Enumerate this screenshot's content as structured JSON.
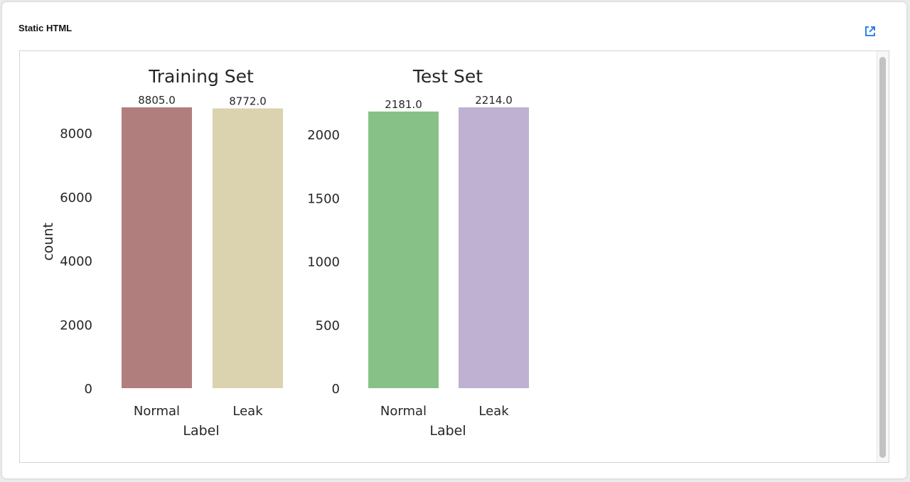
{
  "card": {
    "title": "Static HTML",
    "open_icon": "open-in-new-icon",
    "accent_color": "#1a73e8"
  },
  "chart_data": [
    {
      "type": "bar",
      "title": "Training Set",
      "xlabel": "Label",
      "ylabel": "count",
      "categories": [
        "Normal",
        "Leak"
      ],
      "values": [
        8805.0,
        8772.0
      ],
      "value_labels": [
        "8805.0",
        "8772.0"
      ],
      "colors": [
        "#b07e7c",
        "#dbd2af"
      ],
      "ylim": [
        0,
        8805
      ],
      "yticks": [
        0,
        2000,
        4000,
        6000,
        8000
      ],
      "grid": false
    },
    {
      "type": "bar",
      "title": "Test Set",
      "xlabel": "Label",
      "ylabel": "",
      "categories": [
        "Normal",
        "Leak"
      ],
      "values": [
        2181.0,
        2214.0
      ],
      "value_labels": [
        "2181.0",
        "2214.0"
      ],
      "colors": [
        "#88c187",
        "#bfb1d1"
      ],
      "ylim": [
        0,
        2214
      ],
      "yticks": [
        0,
        500,
        1000,
        1500,
        2000
      ],
      "grid": false
    }
  ]
}
